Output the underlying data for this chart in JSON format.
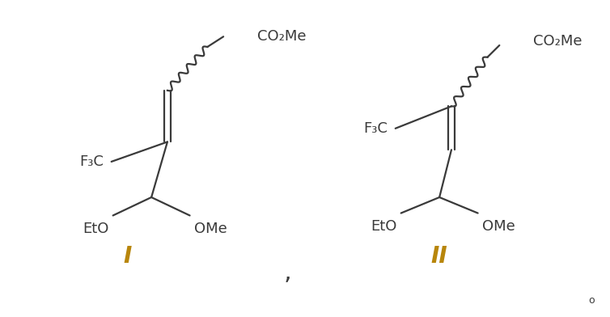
{
  "background_color": "#ffffff",
  "fig_width": 7.54,
  "fig_height": 3.92,
  "dpi": 100,
  "label_I": "I",
  "label_II": "II",
  "comma": ",",
  "label_color": "#B8860B",
  "structure_color": "#3a3a3a",
  "font_size_label": 20,
  "font_size_group": 13,
  "zero_label": "o",
  "lw": 1.6
}
